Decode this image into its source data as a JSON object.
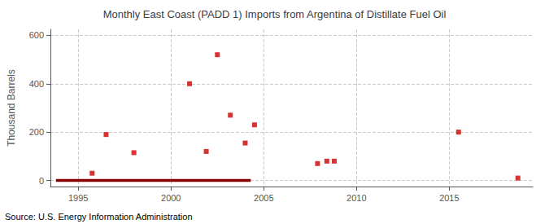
{
  "chart_data": {
    "type": "scatter",
    "title": "Monthly East Coast (PADD 1) Imports from Argentina of Distillate Fuel Oil",
    "ylabel": "Thousand Barrels",
    "annotations": [
      "Source: U.S. Energy Information Administration"
    ],
    "xlim": [
      1993.5,
      2019.5
    ],
    "xticks": [
      1995,
      2000,
      2005,
      2010,
      2015
    ],
    "ylim": [
      -25,
      625
    ],
    "yticks": [
      0,
      200,
      400,
      600
    ],
    "grid": true,
    "series": [
      {
        "type": "line",
        "color": "#8b0000",
        "line_style": "solid",
        "x": [
          1993.8,
          2004.3
        ],
        "values": [
          0,
          0
        ]
      },
      {
        "type": "scatter",
        "color": "#cc0000",
        "marker": "square",
        "x": [
          1995.75,
          1996.5,
          1998.0,
          2001.0,
          2001.9,
          2002.5,
          2003.2,
          2004.0,
          2004.5,
          2007.9,
          2008.4,
          2008.8,
          2015.5,
          2018.7
        ],
        "values": [
          30,
          190,
          115,
          400,
          120,
          520,
          270,
          155,
          230,
          70,
          80,
          80,
          200,
          10
        ]
      }
    ]
  }
}
